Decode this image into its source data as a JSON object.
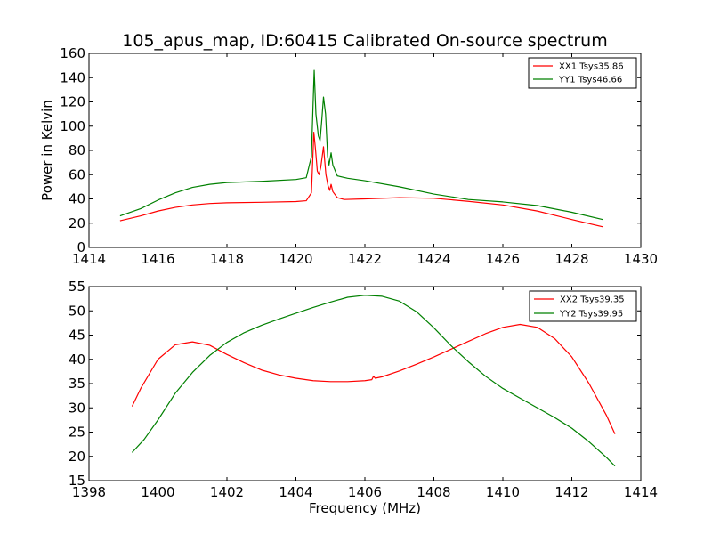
{
  "chart_data": [
    {
      "type": "line",
      "title": "105_apus_map, ID:60415 Calibrated On-source spectrum",
      "xlabel": "",
      "ylabel": "Power in Kelvin",
      "xlim": [
        1414,
        1430
      ],
      "ylim": [
        0,
        160
      ],
      "xticks": [
        "1414",
        "1416",
        "1418",
        "1420",
        "1422",
        "1424",
        "1426",
        "1428",
        "1430"
      ],
      "yticks": [
        "0",
        "20",
        "40",
        "60",
        "80",
        "100",
        "120",
        "140",
        "160"
      ],
      "legend_position": "top-right",
      "series": [
        {
          "name": "XX1 Tsys35.86",
          "color": "#ff0000",
          "points": [
            [
              1414.9,
              22
            ],
            [
              1415.5,
              26
            ],
            [
              1416,
              30
            ],
            [
              1416.5,
              33
            ],
            [
              1417,
              35
            ],
            [
              1417.5,
              36.2
            ],
            [
              1418,
              36.8
            ],
            [
              1419,
              37.2
            ],
            [
              1420,
              37.8
            ],
            [
              1420.3,
              38.5
            ],
            [
              1420.45,
              45
            ],
            [
              1420.52,
              95
            ],
            [
              1420.57,
              80
            ],
            [
              1420.62,
              63
            ],
            [
              1420.67,
              60
            ],
            [
              1420.72,
              66
            ],
            [
              1420.8,
              83
            ],
            [
              1420.87,
              60
            ],
            [
              1420.93,
              51
            ],
            [
              1420.98,
              47
            ],
            [
              1421.02,
              52
            ],
            [
              1421.07,
              46
            ],
            [
              1421.2,
              41
            ],
            [
              1421.4,
              39.5
            ],
            [
              1422,
              40
            ],
            [
              1423,
              41
            ],
            [
              1424,
              40.5
            ],
            [
              1425,
              38
            ],
            [
              1426,
              35
            ],
            [
              1427,
              30
            ],
            [
              1428,
              23
            ],
            [
              1428.9,
              17
            ]
          ]
        },
        {
          "name": "YY1 Tsys46.66",
          "color": "#008000",
          "points": [
            [
              1414.9,
              26
            ],
            [
              1415.5,
              32
            ],
            [
              1416,
              39
            ],
            [
              1416.5,
              45
            ],
            [
              1417,
              49.5
            ],
            [
              1417.5,
              52
            ],
            [
              1418,
              53.5
            ],
            [
              1419,
              54.5
            ],
            [
              1420,
              56
            ],
            [
              1420.3,
              57.5
            ],
            [
              1420.45,
              75
            ],
            [
              1420.5,
              120
            ],
            [
              1420.53,
              146
            ],
            [
              1420.58,
              110
            ],
            [
              1420.65,
              92
            ],
            [
              1420.7,
              88
            ],
            [
              1420.75,
              105
            ],
            [
              1420.8,
              124
            ],
            [
              1420.86,
              110
            ],
            [
              1420.92,
              75
            ],
            [
              1420.96,
              68
            ],
            [
              1421.02,
              78
            ],
            [
              1421.07,
              68
            ],
            [
              1421.2,
              59
            ],
            [
              1421.5,
              57
            ],
            [
              1422,
              55
            ],
            [
              1423,
              50
            ],
            [
              1424,
              44
            ],
            [
              1425,
              39.5
            ],
            [
              1426,
              37.5
            ],
            [
              1427,
              34.5
            ],
            [
              1428,
              29
            ],
            [
              1428.9,
              23
            ]
          ]
        }
      ]
    },
    {
      "type": "line",
      "title": "",
      "xlabel": "Frequency (MHz)",
      "ylabel": "",
      "xlim": [
        1398,
        1414
      ],
      "ylim": [
        15,
        55
      ],
      "xticks": [
        "1398",
        "1400",
        "1402",
        "1404",
        "1406",
        "1408",
        "1410",
        "1412",
        "1414"
      ],
      "yticks": [
        "15",
        "20",
        "25",
        "30",
        "35",
        "40",
        "45",
        "50",
        "55"
      ],
      "legend_position": "top-right",
      "series": [
        {
          "name": "XX2 Tsys39.35",
          "color": "#ff0000",
          "points": [
            [
              1399.25,
              30.3
            ],
            [
              1399.5,
              34
            ],
            [
              1400,
              40
            ],
            [
              1400.5,
              43
            ],
            [
              1401,
              43.6
            ],
            [
              1401.5,
              42.9
            ],
            [
              1402,
              41
            ],
            [
              1402.5,
              39.3
            ],
            [
              1403,
              37.8
            ],
            [
              1403.5,
              36.8
            ],
            [
              1404,
              36.1
            ],
            [
              1404.5,
              35.6
            ],
            [
              1405,
              35.4
            ],
            [
              1405.5,
              35.4
            ],
            [
              1406,
              35.6
            ],
            [
              1406.2,
              35.8
            ],
            [
              1406.25,
              36.5
            ],
            [
              1406.3,
              36.1
            ],
            [
              1406.5,
              36.4
            ],
            [
              1407,
              37.6
            ],
            [
              1407.5,
              39
            ],
            [
              1408,
              40.5
            ],
            [
              1408.5,
              42.1
            ],
            [
              1409,
              43.7
            ],
            [
              1409.5,
              45.3
            ],
            [
              1410,
              46.6
            ],
            [
              1410.5,
              47.2
            ],
            [
              1411,
              46.6
            ],
            [
              1411.5,
              44.3
            ],
            [
              1412,
              40.5
            ],
            [
              1412.5,
              35
            ],
            [
              1413,
              28.5
            ],
            [
              1413.25,
              24.6
            ]
          ]
        },
        {
          "name": "YY2 Tsys39.95",
          "color": "#008000",
          "points": [
            [
              1399.25,
              20.8
            ],
            [
              1399.6,
              23.5
            ],
            [
              1400,
              27.5
            ],
            [
              1400.5,
              33
            ],
            [
              1401,
              37.3
            ],
            [
              1401.5,
              40.8
            ],
            [
              1402,
              43.5
            ],
            [
              1402.5,
              45.5
            ],
            [
              1403,
              47
            ],
            [
              1403.5,
              48.3
            ],
            [
              1404,
              49.5
            ],
            [
              1404.5,
              50.7
            ],
            [
              1405,
              51.8
            ],
            [
              1405.5,
              52.8
            ],
            [
              1406,
              53.2
            ],
            [
              1406.5,
              53
            ],
            [
              1407,
              52
            ],
            [
              1407.5,
              49.8
            ],
            [
              1408,
              46.5
            ],
            [
              1408.5,
              42.8
            ],
            [
              1409,
              39.5
            ],
            [
              1409.5,
              36.5
            ],
            [
              1410,
              34
            ],
            [
              1410.5,
              32
            ],
            [
              1411,
              30
            ],
            [
              1411.5,
              28
            ],
            [
              1412,
              25.8
            ],
            [
              1412.5,
              23
            ],
            [
              1413,
              19.8
            ],
            [
              1413.25,
              18
            ]
          ]
        }
      ]
    }
  ]
}
